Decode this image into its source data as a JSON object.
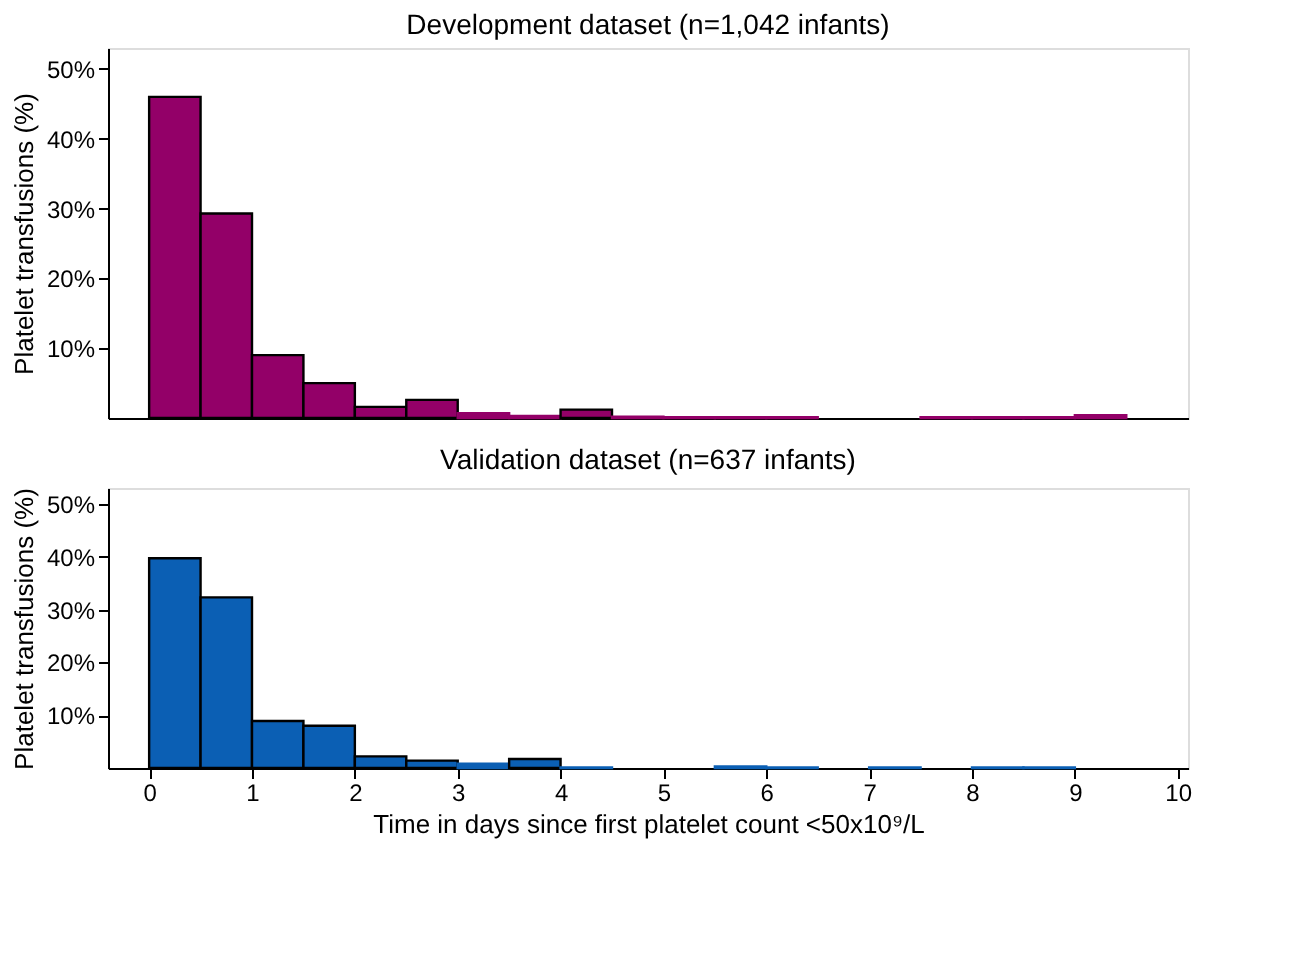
{
  "chart_data": [
    {
      "type": "histogram",
      "title": "Development dataset (n=1,042 infants)",
      "ylabel": "Platelet  transfusions (%)",
      "color": "#930068",
      "bins": [
        0,
        0.5,
        1,
        1.5,
        2,
        2.5,
        3,
        3.5,
        4,
        4.5,
        5,
        5.5,
        6,
        6.5,
        7,
        7.5,
        8,
        8.5,
        9,
        9.5
      ],
      "values": [
        46,
        29.3,
        9,
        5,
        1.6,
        2.6,
        0.7,
        0.3,
        1.2,
        0.2,
        0.1,
        0.1,
        0.1,
        0,
        0,
        0.1,
        0.1,
        0.1,
        0.4
      ],
      "xlim": [
        -0.4,
        10.1
      ],
      "ylim": [
        0,
        53
      ],
      "yticks": [
        {
          "value": 10,
          "label": "10%"
        },
        {
          "value": 20,
          "label": "20%"
        },
        {
          "value": 30,
          "label": "30%"
        },
        {
          "value": 40,
          "label": "40%"
        },
        {
          "value": 50,
          "label": "50%"
        }
      ],
      "tick_labels": "y",
      "grid": false
    },
    {
      "type": "histogram",
      "title": "Validation dataset (n=637 infants)",
      "ylabel": "Platelet  transfusions (%)",
      "xlabel": "Time in days since first platelet count <50x10⁹/L",
      "color": "#0b5fb4",
      "bins": [
        0,
        0.5,
        1,
        1.5,
        2,
        2.5,
        3,
        3.5,
        4,
        4.5,
        5,
        5.5,
        6,
        6.5,
        7,
        7.5,
        8,
        8.5,
        9,
        9.5
      ],
      "values": [
        39.7,
        32.3,
        8.9,
        8,
        2.2,
        1.4,
        0.8,
        1.7,
        0.1,
        0,
        0,
        0.3,
        0.1,
        0,
        0.1,
        0,
        0.1,
        0.1,
        0
      ],
      "xlim": [
        -0.4,
        10.1
      ],
      "ylim": [
        0,
        53
      ],
      "xticks": [
        0,
        1,
        2,
        3,
        4,
        5,
        6,
        7,
        8,
        9,
        10
      ],
      "yticks": [
        {
          "value": 10,
          "label": "10%"
        },
        {
          "value": 20,
          "label": "20%"
        },
        {
          "value": 30,
          "label": "30%"
        },
        {
          "value": 40,
          "label": "40%"
        },
        {
          "value": 50,
          "label": "50%"
        }
      ],
      "grid": false
    }
  ]
}
